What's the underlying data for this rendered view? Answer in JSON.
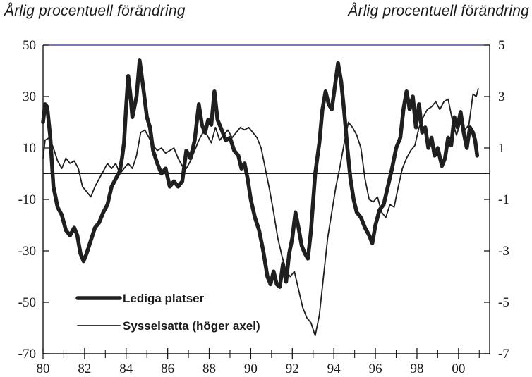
{
  "chart_data": {
    "type": "line",
    "left_axis_label": "Årlig procentuell förändring",
    "right_axis_label": "Årlig procentuell förändring",
    "left_axis": {
      "min": -70,
      "max": 50,
      "ticks": [
        50,
        30,
        10,
        -10,
        -30,
        -50,
        -70
      ]
    },
    "right_axis": {
      "min": -7,
      "max": 5,
      "ticks": [
        5,
        3,
        1,
        -1,
        -3,
        -5,
        -7
      ]
    },
    "x_axis": {
      "min": 1980,
      "max": 2001.5,
      "ticks": [
        1980,
        1982,
        1984,
        1986,
        1988,
        1990,
        1992,
        1994,
        1996,
        1998,
        2000
      ],
      "tick_labels": [
        "80",
        "82",
        "84",
        "86",
        "88",
        "90",
        "92",
        "94",
        "96",
        "98",
        "00"
      ]
    },
    "zero_line": 0,
    "legend": [
      "Lediga platser",
      "Sysselsatta (höger axel)"
    ],
    "series": [
      {
        "name": "Lediga platser",
        "axis": "left",
        "points": [
          [
            1980.0,
            20
          ],
          [
            1980.1,
            27
          ],
          [
            1980.2,
            26
          ],
          [
            1980.35,
            14
          ],
          [
            1980.5,
            -5
          ],
          [
            1980.7,
            -13
          ],
          [
            1980.9,
            -16
          ],
          [
            1981.1,
            -22
          ],
          [
            1981.3,
            -24
          ],
          [
            1981.5,
            -21
          ],
          [
            1981.65,
            -24
          ],
          [
            1981.8,
            -31
          ],
          [
            1981.95,
            -34
          ],
          [
            1982.1,
            -31
          ],
          [
            1982.3,
            -26
          ],
          [
            1982.5,
            -21
          ],
          [
            1982.7,
            -19
          ],
          [
            1982.9,
            -15
          ],
          [
            1983.1,
            -12
          ],
          [
            1983.3,
            -5
          ],
          [
            1983.5,
            -2
          ],
          [
            1983.7,
            1
          ],
          [
            1983.8,
            6
          ],
          [
            1983.9,
            12
          ],
          [
            1984.0,
            26
          ],
          [
            1984.1,
            38
          ],
          [
            1984.2,
            31
          ],
          [
            1984.3,
            22
          ],
          [
            1984.5,
            30
          ],
          [
            1984.65,
            44
          ],
          [
            1984.8,
            35
          ],
          [
            1985.0,
            22
          ],
          [
            1985.15,
            18
          ],
          [
            1985.3,
            9
          ],
          [
            1985.5,
            4
          ],
          [
            1985.7,
            0
          ],
          [
            1985.9,
            2
          ],
          [
            1986.1,
            -5
          ],
          [
            1986.3,
            -3
          ],
          [
            1986.5,
            -5
          ],
          [
            1986.7,
            -3
          ],
          [
            1986.9,
            9
          ],
          [
            1987.1,
            6
          ],
          [
            1987.3,
            13
          ],
          [
            1987.5,
            27
          ],
          [
            1987.65,
            19
          ],
          [
            1987.8,
            16
          ],
          [
            1987.95,
            21
          ],
          [
            1988.1,
            19
          ],
          [
            1988.25,
            32
          ],
          [
            1988.4,
            21
          ],
          [
            1988.6,
            17
          ],
          [
            1988.8,
            13
          ],
          [
            1989.0,
            14
          ],
          [
            1989.2,
            9
          ],
          [
            1989.4,
            7
          ],
          [
            1989.55,
            2
          ],
          [
            1989.7,
            4
          ],
          [
            1989.85,
            -2
          ],
          [
            1990.0,
            -10
          ],
          [
            1990.2,
            -17
          ],
          [
            1990.4,
            -22
          ],
          [
            1990.6,
            -30
          ],
          [
            1990.8,
            -40
          ],
          [
            1990.95,
            -43
          ],
          [
            1991.1,
            -38
          ],
          [
            1991.25,
            -43
          ],
          [
            1991.4,
            -44
          ],
          [
            1991.55,
            -35
          ],
          [
            1991.7,
            -42
          ],
          [
            1991.85,
            -31
          ],
          [
            1992.0,
            -25
          ],
          [
            1992.15,
            -15
          ],
          [
            1992.3,
            -21
          ],
          [
            1992.45,
            -28
          ],
          [
            1992.6,
            -31
          ],
          [
            1992.75,
            -33
          ],
          [
            1992.9,
            -22
          ],
          [
            1993.1,
            0
          ],
          [
            1993.3,
            12
          ],
          [
            1993.45,
            25
          ],
          [
            1993.6,
            32
          ],
          [
            1993.75,
            27
          ],
          [
            1993.9,
            25
          ],
          [
            1994.05,
            34
          ],
          [
            1994.2,
            43
          ],
          [
            1994.35,
            36
          ],
          [
            1994.5,
            24
          ],
          [
            1994.65,
            10
          ],
          [
            1994.8,
            -2
          ],
          [
            1994.95,
            -10
          ],
          [
            1995.1,
            -15
          ],
          [
            1995.3,
            -17
          ],
          [
            1995.5,
            -21
          ],
          [
            1995.7,
            -24
          ],
          [
            1995.85,
            -27
          ],
          [
            1996.0,
            -20
          ],
          [
            1996.2,
            -14
          ],
          [
            1996.4,
            -12
          ],
          [
            1996.6,
            -5
          ],
          [
            1996.8,
            2
          ],
          [
            1997.0,
            10
          ],
          [
            1997.2,
            14
          ],
          [
            1997.35,
            25
          ],
          [
            1997.5,
            32
          ],
          [
            1997.65,
            25
          ],
          [
            1997.8,
            30
          ],
          [
            1997.95,
            18
          ],
          [
            1998.1,
            27
          ],
          [
            1998.25,
            16
          ],
          [
            1998.4,
            18
          ],
          [
            1998.55,
            10
          ],
          [
            1998.7,
            14
          ],
          [
            1998.85,
            7
          ],
          [
            1999.0,
            10
          ],
          [
            1999.2,
            3
          ],
          [
            1999.35,
            6
          ],
          [
            1999.5,
            14
          ],
          [
            1999.65,
            11
          ],
          [
            1999.8,
            22
          ],
          [
            1999.95,
            18
          ],
          [
            2000.1,
            24
          ],
          [
            2000.25,
            16
          ],
          [
            2000.4,
            10
          ],
          [
            2000.55,
            18
          ],
          [
            2000.7,
            16
          ],
          [
            2000.8,
            13
          ],
          [
            2000.9,
            7
          ]
        ]
      },
      {
        "name": "Sysselsatta (höger axel)",
        "axis": "right",
        "points": [
          [
            1980.0,
            0.6
          ],
          [
            1980.1,
            1.3
          ],
          [
            1980.3,
            1.4
          ],
          [
            1980.5,
            1.0
          ],
          [
            1980.7,
            0.5
          ],
          [
            1980.9,
            0.2
          ],
          [
            1981.1,
            0.6
          ],
          [
            1981.3,
            0.4
          ],
          [
            1981.5,
            0.5
          ],
          [
            1981.7,
            0.2
          ],
          [
            1981.9,
            -0.5
          ],
          [
            1982.1,
            -0.7
          ],
          [
            1982.3,
            -0.9
          ],
          [
            1982.5,
            -0.5
          ],
          [
            1982.7,
            -0.2
          ],
          [
            1982.9,
            0.1
          ],
          [
            1983.1,
            0.4
          ],
          [
            1983.3,
            0.2
          ],
          [
            1983.5,
            0.4
          ],
          [
            1983.7,
            0.0
          ],
          [
            1983.9,
            0.2
          ],
          [
            1984.1,
            0.4
          ],
          [
            1984.3,
            0.2
          ],
          [
            1984.5,
            0.7
          ],
          [
            1984.7,
            1.6
          ],
          [
            1984.9,
            1.7
          ],
          [
            1985.1,
            1.4
          ],
          [
            1985.3,
            1.1
          ],
          [
            1985.5,
            0.9
          ],
          [
            1985.7,
            1.0
          ],
          [
            1985.9,
            0.8
          ],
          [
            1986.1,
            0.9
          ],
          [
            1986.3,
            1.0
          ],
          [
            1986.5,
            0.6
          ],
          [
            1986.7,
            0.3
          ],
          [
            1986.9,
            0.2
          ],
          [
            1987.1,
            0.5
          ],
          [
            1987.3,
            0.9
          ],
          [
            1987.5,
            1.3
          ],
          [
            1987.7,
            1.6
          ],
          [
            1987.9,
            1.5
          ],
          [
            1988.1,
            1.2
          ],
          [
            1988.3,
            1.8
          ],
          [
            1988.5,
            1.3
          ],
          [
            1988.7,
            1.5
          ],
          [
            1988.9,
            1.7
          ],
          [
            1989.1,
            1.4
          ],
          [
            1989.3,
            1.6
          ],
          [
            1989.5,
            1.8
          ],
          [
            1989.7,
            1.7
          ],
          [
            1989.9,
            1.8
          ],
          [
            1990.1,
            1.6
          ],
          [
            1990.3,
            1.4
          ],
          [
            1990.5,
            1.0
          ],
          [
            1990.7,
            0.2
          ],
          [
            1990.9,
            -0.6
          ],
          [
            1991.1,
            -1.5
          ],
          [
            1991.3,
            -2.5
          ],
          [
            1991.5,
            -3.2
          ],
          [
            1991.7,
            -3.8
          ],
          [
            1991.9,
            -4.0
          ],
          [
            1992.1,
            -3.8
          ],
          [
            1992.3,
            -4.5
          ],
          [
            1992.5,
            -5.2
          ],
          [
            1992.7,
            -5.6
          ],
          [
            1992.9,
            -5.8
          ],
          [
            1993.1,
            -6.3
          ],
          [
            1993.3,
            -5.5
          ],
          [
            1993.5,
            -4.0
          ],
          [
            1993.7,
            -2.5
          ],
          [
            1993.9,
            -1.5
          ],
          [
            1994.1,
            -0.5
          ],
          [
            1994.3,
            0.3
          ],
          [
            1994.5,
            1.2
          ],
          [
            1994.7,
            2.0
          ],
          [
            1994.9,
            1.8
          ],
          [
            1995.1,
            1.5
          ],
          [
            1995.3,
            1.0
          ],
          [
            1995.5,
            -0.2
          ],
          [
            1995.7,
            -1.0
          ],
          [
            1995.9,
            -1.1
          ],
          [
            1996.1,
            -0.9
          ],
          [
            1996.3,
            -1.5
          ],
          [
            1996.5,
            -1.7
          ],
          [
            1996.7,
            -1.2
          ],
          [
            1996.9,
            -1.3
          ],
          [
            1997.1,
            -0.5
          ],
          [
            1997.3,
            0.2
          ],
          [
            1997.5,
            0.6
          ],
          [
            1997.7,
            0.9
          ],
          [
            1997.9,
            1.1
          ],
          [
            1998.1,
            1.8
          ],
          [
            1998.3,
            2.2
          ],
          [
            1998.5,
            2.5
          ],
          [
            1998.7,
            2.6
          ],
          [
            1998.9,
            2.8
          ],
          [
            1999.1,
            2.5
          ],
          [
            1999.3,
            2.8
          ],
          [
            1999.5,
            2.9
          ],
          [
            1999.7,
            2.1
          ],
          [
            1999.9,
            1.5
          ],
          [
            2000.1,
            2.0
          ],
          [
            2000.3,
            1.7
          ],
          [
            2000.5,
            1.9
          ],
          [
            2000.7,
            3.1
          ],
          [
            2000.85,
            3.0
          ],
          [
            2000.95,
            3.3
          ]
        ]
      }
    ]
  }
}
